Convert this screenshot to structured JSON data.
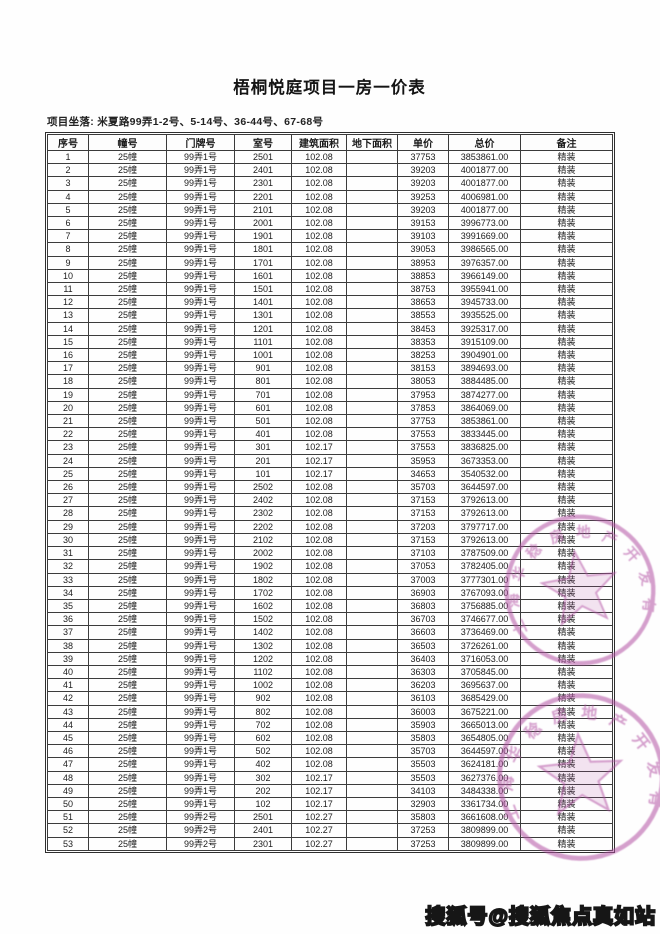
{
  "title": "梧桐悦庭项目一房一价表",
  "address_line": "项目坐落: 米夏路99弄1-2号、5-14号、36-44号、67-68号",
  "table": {
    "headers": [
      "序号",
      "幢号",
      "门牌号",
      "室号",
      "建筑面积",
      "地下面积",
      "单价",
      "总价",
      "备注"
    ],
    "rows": [
      [
        "1",
        "25幢",
        "99弄1号",
        "2501",
        "102.08",
        "",
        "37753",
        "3853861.00",
        "精装"
      ],
      [
        "2",
        "25幢",
        "99弄1号",
        "2401",
        "102.08",
        "",
        "39203",
        "4001877.00",
        "精装"
      ],
      [
        "3",
        "25幢",
        "99弄1号",
        "2301",
        "102.08",
        "",
        "39203",
        "4001877.00",
        "精装"
      ],
      [
        "4",
        "25幢",
        "99弄1号",
        "2201",
        "102.08",
        "",
        "39253",
        "4006981.00",
        "精装"
      ],
      [
        "5",
        "25幢",
        "99弄1号",
        "2101",
        "102.08",
        "",
        "39203",
        "4001877.00",
        "精装"
      ],
      [
        "6",
        "25幢",
        "99弄1号",
        "2001",
        "102.08",
        "",
        "39153",
        "3996773.00",
        "精装"
      ],
      [
        "7",
        "25幢",
        "99弄1号",
        "1901",
        "102.08",
        "",
        "39103",
        "3991669.00",
        "精装"
      ],
      [
        "8",
        "25幢",
        "99弄1号",
        "1801",
        "102.08",
        "",
        "39053",
        "3986565.00",
        "精装"
      ],
      [
        "9",
        "25幢",
        "99弄1号",
        "1701",
        "102.08",
        "",
        "38953",
        "3976357.00",
        "精装"
      ],
      [
        "10",
        "25幢",
        "99弄1号",
        "1601",
        "102.08",
        "",
        "38853",
        "3966149.00",
        "精装"
      ],
      [
        "11",
        "25幢",
        "99弄1号",
        "1501",
        "102.08",
        "",
        "38753",
        "3955941.00",
        "精装"
      ],
      [
        "12",
        "25幢",
        "99弄1号",
        "1401",
        "102.08",
        "",
        "38653",
        "3945733.00",
        "精装"
      ],
      [
        "13",
        "25幢",
        "99弄1号",
        "1301",
        "102.08",
        "",
        "38553",
        "3935525.00",
        "精装"
      ],
      [
        "14",
        "25幢",
        "99弄1号",
        "1201",
        "102.08",
        "",
        "38453",
        "3925317.00",
        "精装"
      ],
      [
        "15",
        "25幢",
        "99弄1号",
        "1101",
        "102.08",
        "",
        "38353",
        "3915109.00",
        "精装"
      ],
      [
        "16",
        "25幢",
        "99弄1号",
        "1001",
        "102.08",
        "",
        "38253",
        "3904901.00",
        "精装"
      ],
      [
        "17",
        "25幢",
        "99弄1号",
        "901",
        "102.08",
        "",
        "38153",
        "3894693.00",
        "精装"
      ],
      [
        "18",
        "25幢",
        "99弄1号",
        "801",
        "102.08",
        "",
        "38053",
        "3884485.00",
        "精装"
      ],
      [
        "19",
        "25幢",
        "99弄1号",
        "701",
        "102.08",
        "",
        "37953",
        "3874277.00",
        "精装"
      ],
      [
        "20",
        "25幢",
        "99弄1号",
        "601",
        "102.08",
        "",
        "37853",
        "3864069.00",
        "精装"
      ],
      [
        "21",
        "25幢",
        "99弄1号",
        "501",
        "102.08",
        "",
        "37753",
        "3853861.00",
        "精装"
      ],
      [
        "22",
        "25幢",
        "99弄1号",
        "401",
        "102.08",
        "",
        "37553",
        "3833445.00",
        "精装"
      ],
      [
        "23",
        "25幢",
        "99弄1号",
        "301",
        "102.17",
        "",
        "37553",
        "3836825.00",
        "精装"
      ],
      [
        "24",
        "25幢",
        "99弄1号",
        "201",
        "102.17",
        "",
        "35953",
        "3673353.00",
        "精装"
      ],
      [
        "25",
        "25幢",
        "99弄1号",
        "101",
        "102.17",
        "",
        "34653",
        "3540532.00",
        "精装"
      ],
      [
        "26",
        "25幢",
        "99弄1号",
        "2502",
        "102.08",
        "",
        "35703",
        "3644597.00",
        "精装"
      ],
      [
        "27",
        "25幢",
        "99弄1号",
        "2402",
        "102.08",
        "",
        "37153",
        "3792613.00",
        "精装"
      ],
      [
        "28",
        "25幢",
        "99弄1号",
        "2302",
        "102.08",
        "",
        "37153",
        "3792613.00",
        "精装"
      ],
      [
        "29",
        "25幢",
        "99弄1号",
        "2202",
        "102.08",
        "",
        "37203",
        "3797717.00",
        "精装"
      ],
      [
        "30",
        "25幢",
        "99弄1号",
        "2102",
        "102.08",
        "",
        "37153",
        "3792613.00",
        "精装"
      ],
      [
        "31",
        "25幢",
        "99弄1号",
        "2002",
        "102.08",
        "",
        "37103",
        "3787509.00",
        "精装"
      ],
      [
        "32",
        "25幢",
        "99弄1号",
        "1902",
        "102.08",
        "",
        "37053",
        "3782405.00",
        "精装"
      ],
      [
        "33",
        "25幢",
        "99弄1号",
        "1802",
        "102.08",
        "",
        "37003",
        "3777301.00",
        "精装"
      ],
      [
        "34",
        "25幢",
        "99弄1号",
        "1702",
        "102.08",
        "",
        "36903",
        "3767093.00",
        "精装"
      ],
      [
        "35",
        "25幢",
        "99弄1号",
        "1602",
        "102.08",
        "",
        "36803",
        "3756885.00",
        "精装"
      ],
      [
        "36",
        "25幢",
        "99弄1号",
        "1502",
        "102.08",
        "",
        "36703",
        "3746677.00",
        "精装"
      ],
      [
        "37",
        "25幢",
        "99弄1号",
        "1402",
        "102.08",
        "",
        "36603",
        "3736469.00",
        "精装"
      ],
      [
        "38",
        "25幢",
        "99弄1号",
        "1302",
        "102.08",
        "",
        "36503",
        "3726261.00",
        "精装"
      ],
      [
        "39",
        "25幢",
        "99弄1号",
        "1202",
        "102.08",
        "",
        "36403",
        "3716053.00",
        "精装"
      ],
      [
        "40",
        "25幢",
        "99弄1号",
        "1102",
        "102.08",
        "",
        "36303",
        "3705845.00",
        "精装"
      ],
      [
        "41",
        "25幢",
        "99弄1号",
        "1002",
        "102.08",
        "",
        "36203",
        "3695637.00",
        "精装"
      ],
      [
        "42",
        "25幢",
        "99弄1号",
        "902",
        "102.08",
        "",
        "36103",
        "3685429.00",
        "精装"
      ],
      [
        "43",
        "25幢",
        "99弄1号",
        "802",
        "102.08",
        "",
        "36003",
        "3675221.00",
        "精装"
      ],
      [
        "44",
        "25幢",
        "99弄1号",
        "702",
        "102.08",
        "",
        "35903",
        "3665013.00",
        "精装"
      ],
      [
        "45",
        "25幢",
        "99弄1号",
        "602",
        "102.08",
        "",
        "35803",
        "3654805.00",
        "精装"
      ],
      [
        "46",
        "25幢",
        "99弄1号",
        "502",
        "102.08",
        "",
        "35703",
        "3644597.00",
        "精装"
      ],
      [
        "47",
        "25幢",
        "99弄1号",
        "402",
        "102.08",
        "",
        "35503",
        "3624181.00",
        "精装"
      ],
      [
        "48",
        "25幢",
        "99弄1号",
        "302",
        "102.17",
        "",
        "35503",
        "3627376.00",
        "精装"
      ],
      [
        "49",
        "25幢",
        "99弄1号",
        "202",
        "102.17",
        "",
        "34103",
        "3484338.00",
        "精装"
      ],
      [
        "50",
        "25幢",
        "99弄1号",
        "102",
        "102.17",
        "",
        "32903",
        "3361734.00",
        "精装"
      ],
      [
        "51",
        "25幢",
        "99弄2号",
        "2501",
        "102.27",
        "",
        "35803",
        "3661608.00",
        "精装"
      ],
      [
        "52",
        "25幢",
        "99弄2号",
        "2401",
        "102.27",
        "",
        "37253",
        "3809899.00",
        "精装"
      ],
      [
        "53",
        "25幢",
        "99弄2号",
        "2301",
        "102.27",
        "",
        "37253",
        "3809899.00",
        "精装"
      ]
    ]
  },
  "stamps": [
    {
      "name": "company-seal-upper",
      "text": "上海华稔房地产开发有限公司",
      "color": "#b352a4"
    },
    {
      "name": "company-seal-lower",
      "text": "上海华稔房地产开发有限公司",
      "color": "#b352a4"
    }
  ],
  "watermark": "搜狐号@搜狐焦点真如站"
}
